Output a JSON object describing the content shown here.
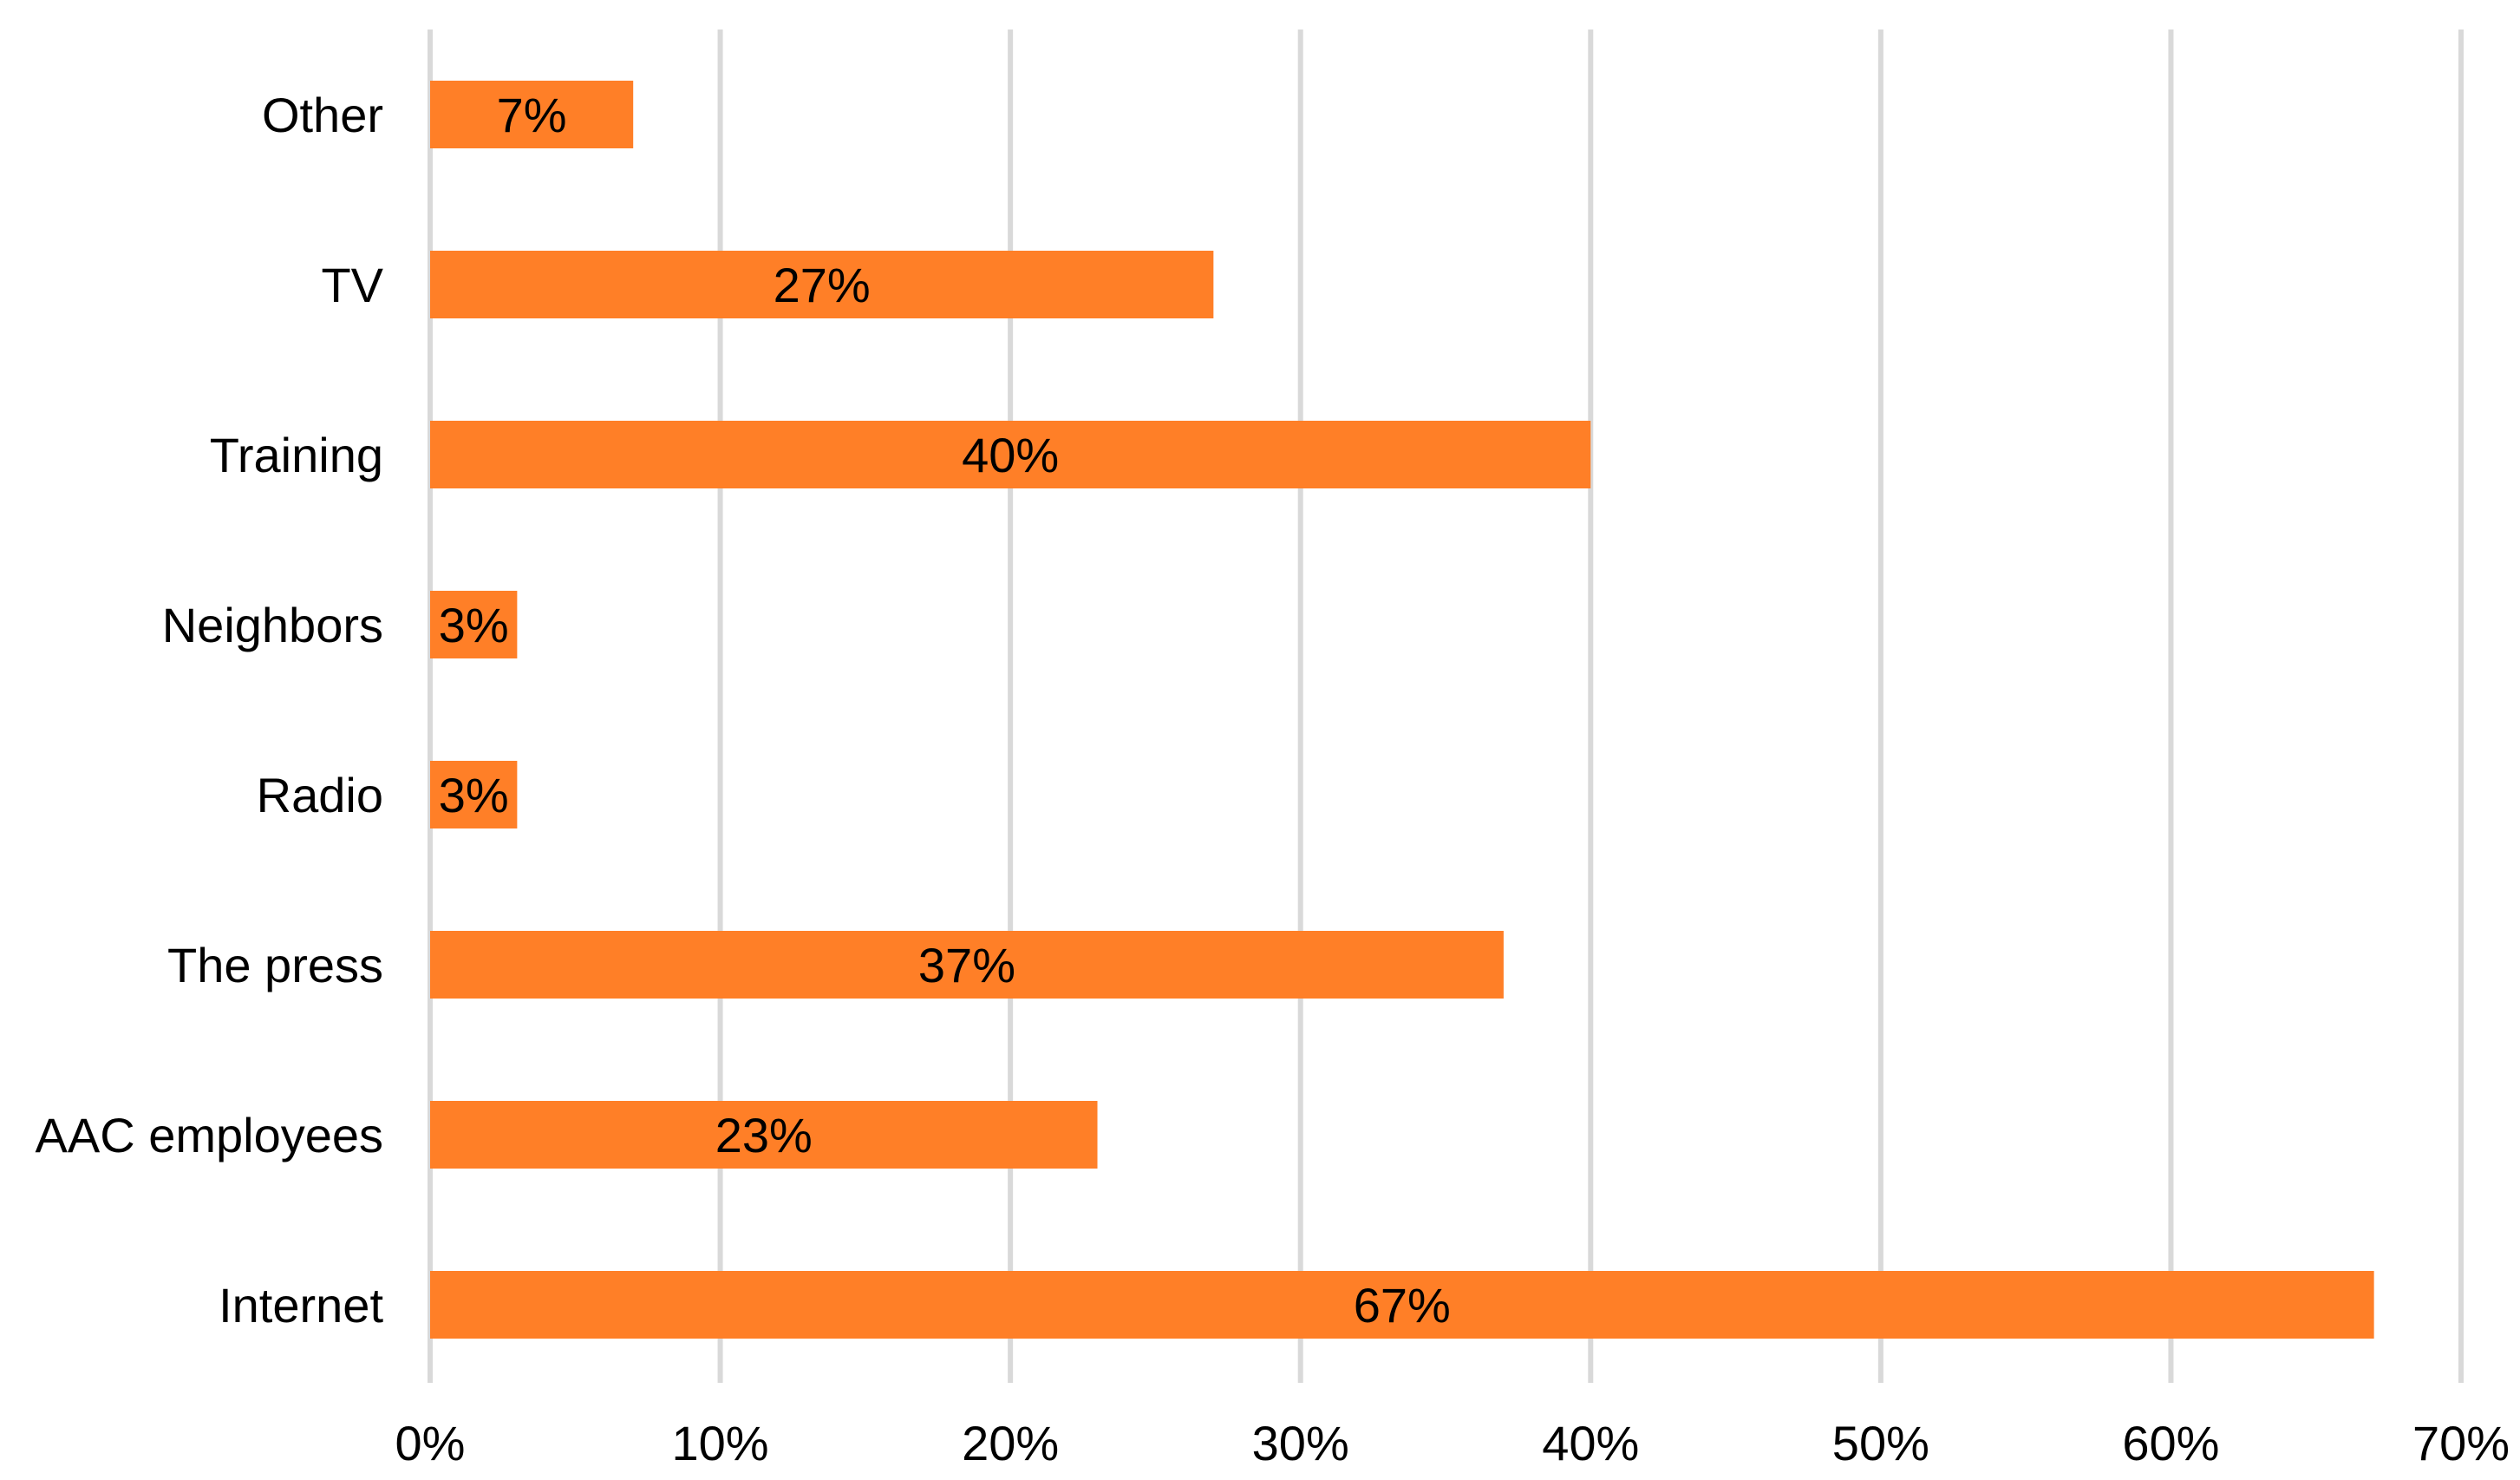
{
  "chart_data": {
    "type": "bar",
    "orientation": "horizontal",
    "categories": [
      "Other",
      "TV",
      "Training",
      "Neighbors",
      "Radio",
      "The press",
      "AAC employees",
      "Internet"
    ],
    "values": [
      7,
      27,
      40,
      3,
      3,
      37,
      23,
      67
    ],
    "data_labels": [
      "7%",
      "27%",
      "40%",
      "3%",
      "3%",
      "37%",
      "23%",
      "67%"
    ],
    "xlim": [
      0,
      70
    ],
    "x_ticks": [
      0,
      10,
      20,
      30,
      40,
      50,
      60,
      70
    ],
    "x_tick_labels": [
      "0%",
      "10%",
      "20%",
      "30%",
      "40%",
      "50%",
      "60%",
      "70%"
    ],
    "title": "",
    "xlabel": "",
    "ylabel": "",
    "grid": "vertical",
    "legend": "none",
    "bar_color": "#ff7f27",
    "grid_color": "#d9d9d9"
  }
}
